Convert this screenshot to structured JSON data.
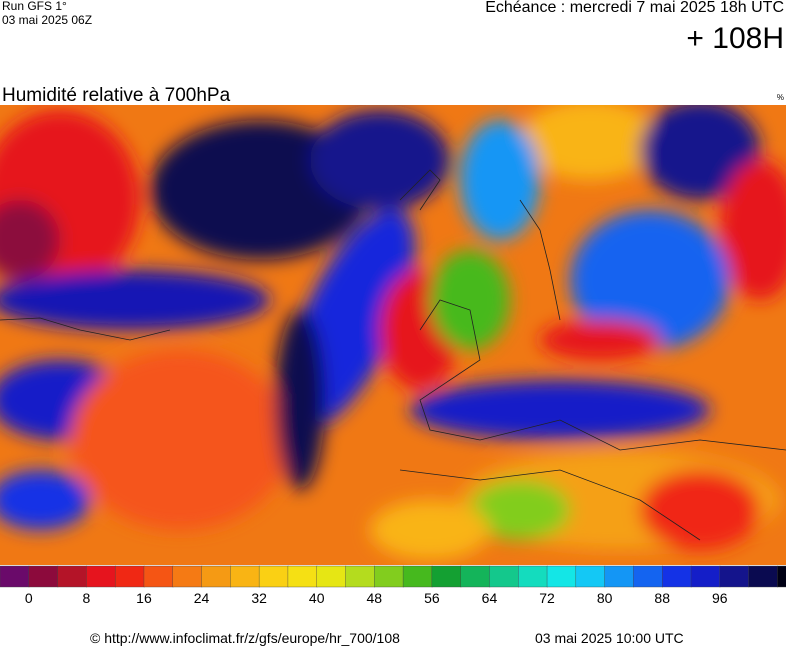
{
  "header": {
    "run": "Run GFS 1°",
    "run_date": "03 mai 2025 06Z",
    "echeance": "Echéance : mercredi 7 mai 2025 18h UTC",
    "lead": "+ 108H"
  },
  "map": {
    "title": "Humidité relative à 700hPa",
    "unit": "%"
  },
  "legend": {
    "colors": [
      "#6a0a6a",
      "#8c0a3c",
      "#b41428",
      "#e6141e",
      "#f02814",
      "#f55514",
      "#f57a14",
      "#f59a14",
      "#f9b414",
      "#fad014",
      "#f5e014",
      "#e6e614",
      "#b4dc1e",
      "#82cd1e",
      "#46b91e",
      "#14a032",
      "#14b45a",
      "#14c88c",
      "#14dcbe",
      "#14e6e6",
      "#14c8f5",
      "#1496f5",
      "#1464f0",
      "#1432e6",
      "#141ec8",
      "#14148c",
      "#0a0a50",
      "#000014"
    ],
    "ticks": [
      0,
      8,
      16,
      24,
      32,
      40,
      48,
      56,
      64,
      72,
      80,
      88,
      96
    ]
  },
  "footer": {
    "url": "© http://www.infoclimat.fr/z/gfs/europe/hr_700/108",
    "date": "03 mai 2025 10:00 UTC"
  }
}
